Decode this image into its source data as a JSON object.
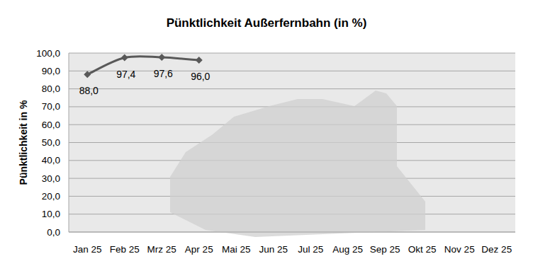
{
  "chart_data": {
    "type": "line",
    "title": "Pünktlichkeit Außerfernbahn (in %)",
    "y_label": "Pünktlichkeit in %",
    "categories": [
      "Jan 25",
      "Feb 25",
      "Mrz 25",
      "Apr 25",
      "Mai 25",
      "Jun 25",
      "Jul 25",
      "Aug 25",
      "Sep 25",
      "Okt 25",
      "Nov 25",
      "Dez 25"
    ],
    "values": [
      88.0,
      97.4,
      97.6,
      96.0,
      null,
      null,
      null,
      null,
      null,
      null,
      null,
      null
    ],
    "value_labels": [
      "88,0",
      "97,4",
      "97,6",
      "96,0",
      null,
      null,
      null,
      null,
      null,
      null,
      null,
      null
    ],
    "color": "#595959",
    "marker": "diamond",
    "line_style": "solid",
    "data_labels": true,
    "grid": true,
    "ylim": [
      0,
      100
    ],
    "yticks": [
      {
        "value": 0,
        "label": "0,0"
      },
      {
        "value": 10,
        "label": "10,0"
      },
      {
        "value": 20,
        "label": "20,0"
      },
      {
        "value": 30,
        "label": "30,0"
      },
      {
        "value": 40,
        "label": "40,0"
      },
      {
        "value": 50,
        "label": "50,0"
      },
      {
        "value": 60,
        "label": "60,0"
      },
      {
        "value": 70,
        "label": "70,0"
      },
      {
        "value": 80,
        "label": "80,0"
      },
      {
        "value": 90,
        "label": "90,0"
      },
      {
        "value": 100,
        "label": "100,0"
      }
    ]
  }
}
